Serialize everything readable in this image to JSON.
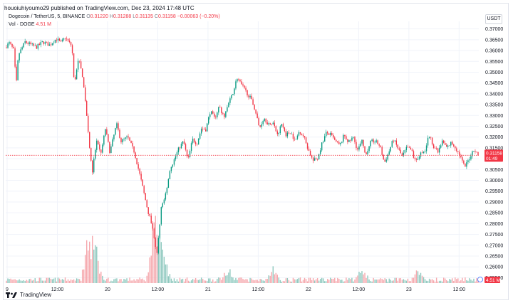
{
  "header": {
    "byline": "houoiuhiyoumo29 published on TradingView.com, Dec 23, 2024 17:48 UTC",
    "symbol": "Dogecoin / TetherUS, 5, BINANCE",
    "ohlc": {
      "o_label": "O",
      "o": "0.31220",
      "h_label": "H",
      "h": "0.31288",
      "l_label": "L",
      "l": "0.31135",
      "c_label": "C",
      "c": "0.31158",
      "change": "−0.00063 (−0.20%)"
    },
    "volume_label": "Vol · DOGE",
    "volume_value": "4.51 M",
    "currency": "USDT"
  },
  "footer": {
    "brand": "TradingView",
    "logo_icon": "tradingview-logo-icon"
  },
  "colors": {
    "up": "#089981",
    "down": "#f23645",
    "vol_up": "#8fc9bf",
    "vol_down": "#f5a8ad",
    "grid": "#f0f3fa"
  },
  "chart_data": {
    "type": "candlestick",
    "interval": "5",
    "y_axis": {
      "ticks": [
        "0.37000",
        "0.36500",
        "0.36000",
        "0.35500",
        "0.35000",
        "0.34500",
        "0.34000",
        "0.33500",
        "0.33000",
        "0.32500",
        "0.32000",
        "0.31500",
        "0.31000",
        "0.30500",
        "0.30000",
        "0.29500",
        "0.29000",
        "0.28500",
        "0.28000",
        "0.27500",
        "0.27000",
        "0.26500",
        "0.26000",
        "0.25500"
      ],
      "ylim": [
        0.2525,
        0.3735
      ]
    },
    "x_axis": {
      "ticks": [
        "9",
        "12:00",
        "20",
        "12:00",
        "21",
        "12:00",
        "22",
        "12:00",
        "23",
        "12:00"
      ]
    },
    "price_path": [
      [
        0,
        0.3615
      ],
      [
        2,
        0.3635
      ],
      [
        4,
        0.36
      ],
      [
        5,
        0.3435
      ],
      [
        6,
        0.358
      ],
      [
        9,
        0.364
      ],
      [
        14,
        0.3615
      ],
      [
        17,
        0.364
      ],
      [
        20,
        0.3625
      ],
      [
        23,
        0.3655
      ],
      [
        25,
        0.3635
      ],
      [
        27,
        0.366
      ],
      [
        30,
        0.362
      ],
      [
        31,
        0.3445
      ],
      [
        33,
        0.356
      ],
      [
        35,
        0.347
      ],
      [
        37,
        0.326
      ],
      [
        39,
        0.303
      ],
      [
        41,
        0.318
      ],
      [
        43,
        0.312
      ],
      [
        45,
        0.324
      ],
      [
        47,
        0.313
      ],
      [
        50,
        0.326
      ],
      [
        52,
        0.318
      ],
      [
        55,
        0.32
      ],
      [
        58,
        0.313
      ],
      [
        61,
        0.3
      ],
      [
        64,
        0.286
      ],
      [
        66,
        0.2795
      ],
      [
        68,
        0.265
      ],
      [
        70,
        0.287
      ],
      [
        72,
        0.294
      ],
      [
        74,
        0.305
      ],
      [
        76,
        0.31
      ],
      [
        78,
        0.315
      ],
      [
        80,
        0.318
      ],
      [
        82,
        0.309
      ],
      [
        84,
        0.319
      ],
      [
        86,
        0.317
      ],
      [
        88,
        0.324
      ],
      [
        90,
        0.3235
      ],
      [
        92,
        0.332
      ],
      [
        94,
        0.3285
      ],
      [
        96,
        0.3345
      ],
      [
        98,
        0.329
      ],
      [
        100,
        0.335
      ],
      [
        102,
        0.34
      ],
      [
        104,
        0.3475
      ],
      [
        106,
        0.344
      ],
      [
        108,
        0.341
      ],
      [
        110,
        0.338
      ],
      [
        112,
        0.333
      ],
      [
        114,
        0.324
      ],
      [
        116,
        0.329
      ],
      [
        118,
        0.326
      ],
      [
        120,
        0.327
      ],
      [
        122,
        0.321
      ],
      [
        124,
        0.326
      ],
      [
        126,
        0.321
      ],
      [
        128,
        0.3225
      ],
      [
        130,
        0.318
      ],
      [
        132,
        0.323
      ],
      [
        134,
        0.32
      ],
      [
        136,
        0.314
      ],
      [
        138,
        0.309
      ],
      [
        140,
        0.31
      ],
      [
        142,
        0.317
      ],
      [
        144,
        0.322
      ],
      [
        146,
        0.321
      ],
      [
        148,
        0.318
      ],
      [
        150,
        0.316
      ],
      [
        152,
        0.321
      ],
      [
        154,
        0.3175
      ],
      [
        156,
        0.32
      ],
      [
        158,
        0.314
      ],
      [
        160,
        0.318
      ],
      [
        162,
        0.311
      ],
      [
        164,
        0.318
      ],
      [
        166,
        0.318
      ],
      [
        168,
        0.316
      ],
      [
        170,
        0.308
      ],
      [
        172,
        0.313
      ],
      [
        174,
        0.319
      ],
      [
        176,
        0.315
      ],
      [
        178,
        0.311
      ],
      [
        180,
        0.315
      ],
      [
        182,
        0.314
      ],
      [
        184,
        0.309
      ],
      [
        186,
        0.312
      ],
      [
        188,
        0.313
      ],
      [
        190,
        0.321
      ],
      [
        192,
        0.316
      ],
      [
        194,
        0.313
      ],
      [
        196,
        0.318
      ],
      [
        198,
        0.315
      ],
      [
        200,
        0.3175
      ],
      [
        202,
        0.315
      ],
      [
        204,
        0.311
      ],
      [
        206,
        0.306
      ],
      [
        208,
        0.31
      ],
      [
        210,
        0.3145
      ],
      [
        212,
        0.3116
      ]
    ],
    "volume_spikes": [
      [
        37,
        5.0
      ],
      [
        39,
        4.6
      ],
      [
        41,
        3.2
      ],
      [
        66,
        4.4
      ],
      [
        68,
        7.0
      ],
      [
        70,
        3.4
      ],
      [
        72,
        2.6
      ],
      [
        100,
        2.0
      ],
      [
        120,
        1.8
      ],
      [
        160,
        1.6
      ],
      [
        185,
        1.4
      ]
    ],
    "last_price": "0.31158",
    "countdown": "01:49",
    "last_volume": "4.51 M"
  }
}
